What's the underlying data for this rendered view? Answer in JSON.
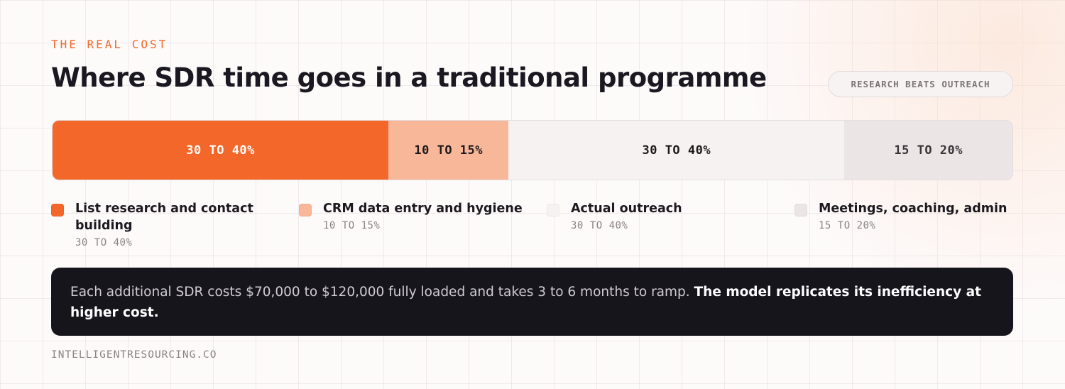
{
  "header": {
    "eyebrow": "THE REAL COST",
    "title": "Where SDR time goes in a traditional programme",
    "badge": "RESEARCH BEATS OUTREACH"
  },
  "segments": [
    {
      "label": "30 TO 40%",
      "name": "List research and contact building",
      "share": 35,
      "color": "#f4672a",
      "text_color": "#ffffff"
    },
    {
      "label": "10 TO 15%",
      "name": "CRM data entry and hygiene",
      "share": 12.5,
      "color": "#f9b79a",
      "text_color": "#1e1a1c"
    },
    {
      "label": "30 TO 40%",
      "name": "Actual outreach",
      "share": 35,
      "color": "#f6f2f2",
      "text_color": "#1e1a1c"
    },
    {
      "label": "15 TO 20%",
      "name": "Meetings, coaching, admin",
      "share": 17.5,
      "color": "#ebe5e6",
      "text_color": "#3a3538"
    }
  ],
  "note": {
    "text": "Each additional SDR costs $70,000 to $120,000 fully loaded and takes 3 to 6 months to ramp.",
    "emphasis": "The model replicates its inefficiency at higher cost."
  },
  "footer": "INTELLIGENTRESOURCING.CO"
}
